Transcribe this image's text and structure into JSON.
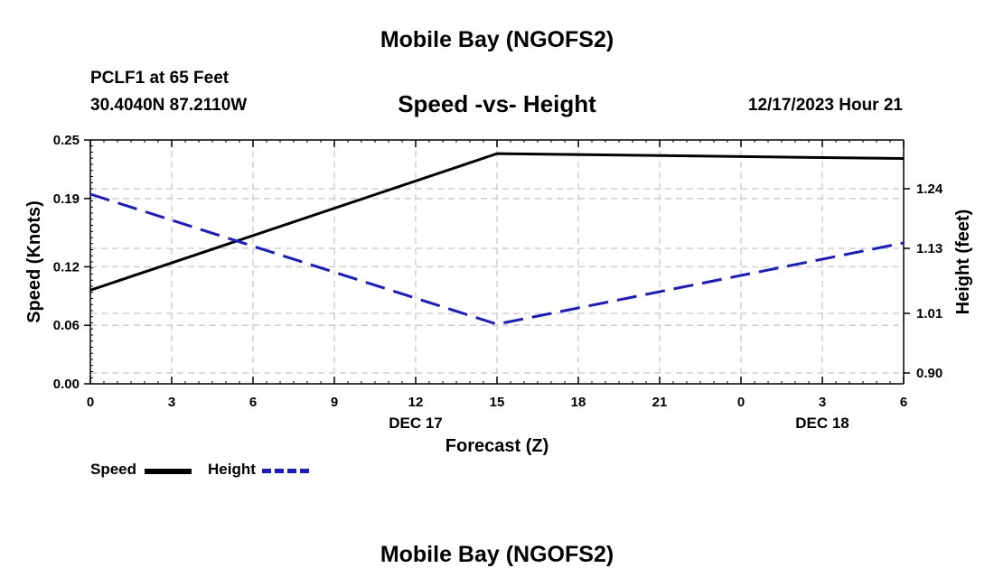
{
  "header": {
    "title": "Mobile Bay (NGOFS2)",
    "station": "PCLF1 at 65 Feet",
    "coords": "30.4040N  87.2110W",
    "datetime": "12/17/2023 Hour 21"
  },
  "footer": {
    "title": "Mobile Bay (NGOFS2)"
  },
  "chart_data": {
    "type": "line",
    "title": "Speed -vs- Height",
    "xlabel": "Forecast (Z)",
    "ylabel_left": "Speed (Knots)",
    "ylabel_right": "Height (feet)",
    "x_ticks": [
      "0",
      "3",
      "6",
      "9",
      "12",
      "15",
      "18",
      "21",
      "0",
      "3",
      "6"
    ],
    "x_day_labels": [
      {
        "label": "DEC 17",
        "at_hour": 12
      },
      {
        "label": "DEC 18",
        "at_hour": 27
      }
    ],
    "xlim": [
      0,
      30
    ],
    "y_left_ticks": [
      "0.00",
      "0.06",
      "0.12",
      "0.19",
      "0.25"
    ],
    "ylim_left": [
      0,
      0.25
    ],
    "y_right_ticks": [
      "0.90",
      "1.01",
      "1.13",
      "1.24"
    ],
    "ylim_right": [
      0.88,
      1.33
    ],
    "grid": true,
    "legend_position": "bottom-left",
    "series": [
      {
        "name": "Speed",
        "axis": "left",
        "color": "#000000",
        "dash": "solid",
        "points": [
          [
            0,
            0.096
          ],
          [
            15,
            0.236
          ],
          [
            30,
            0.231
          ]
        ]
      },
      {
        "name": "Height",
        "axis": "right",
        "color": "#1a1acc",
        "dash": "dashed",
        "points": [
          [
            0,
            1.23
          ],
          [
            15,
            0.99
          ],
          [
            30,
            1.14
          ]
        ]
      }
    ]
  }
}
